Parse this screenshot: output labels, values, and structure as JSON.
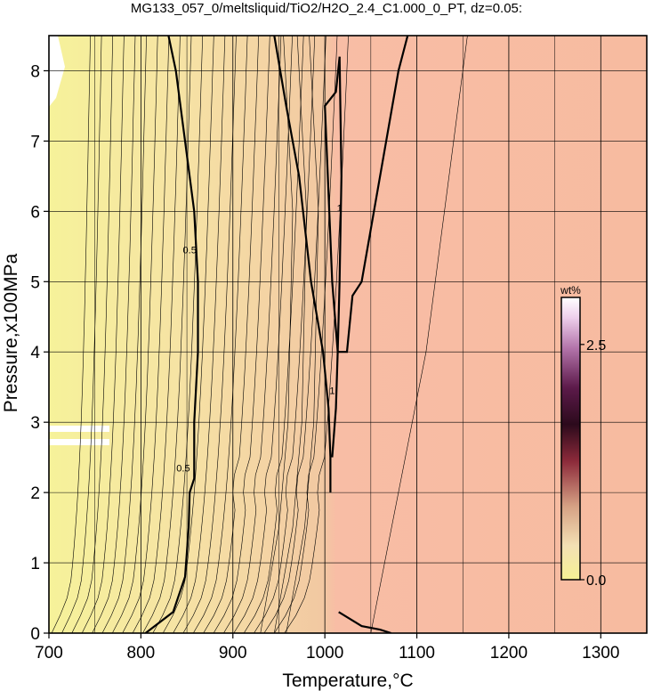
{
  "chart_data": {
    "type": "heatmap",
    "title": "MG133_057_0/meltsliquid/TiO2/H2O_2.4_C1.000_0_PT, dz=0.05:",
    "xlabel": "Temperature,°C",
    "ylabel": "Pressure,x100MPa",
    "xlim": [
      700,
      1350
    ],
    "ylim": [
      0,
      8.5
    ],
    "x_ticks": [
      700,
      800,
      900,
      1000,
      1100,
      1200,
      1300
    ],
    "y_ticks": [
      0,
      1,
      2,
      3,
      4,
      5,
      6,
      7,
      8
    ],
    "x_tick_labels": [
      "700",
      "800",
      "900",
      "1000",
      "1100",
      "1200",
      "1300"
    ],
    "y_tick_labels": [
      "0",
      "1",
      "2",
      "3",
      "4",
      "5",
      "6",
      "7",
      "8"
    ],
    "grid": true,
    "colorbar": {
      "unit": "wt%",
      "range": [
        0.0,
        3.0
      ],
      "tick_labels": [
        "2.5",
        "0.0"
      ],
      "tick_values": [
        2.5,
        0.0
      ],
      "colors": [
        "#f6f294",
        "#f2d9a8",
        "#d49a7f",
        "#8a2638",
        "#2a0a1e",
        "#5c1a4a",
        "#b06aa6",
        "#f2d6f0",
        "#ffffff"
      ]
    },
    "contour_labels": [
      {
        "text": "0.5",
        "x": 853,
        "y": 5.4
      },
      {
        "text": "0.5",
        "x": 846,
        "y": 2.3
      },
      {
        "text": "1",
        "x": 1016,
        "y": 6.0
      },
      {
        "text": "1",
        "x": 1008,
        "y": 3.4
      }
    ],
    "colors": {
      "low_field": "#f6f29a",
      "mid_field": "#f3d3a4",
      "high_field": "#f7bba0"
    }
  }
}
